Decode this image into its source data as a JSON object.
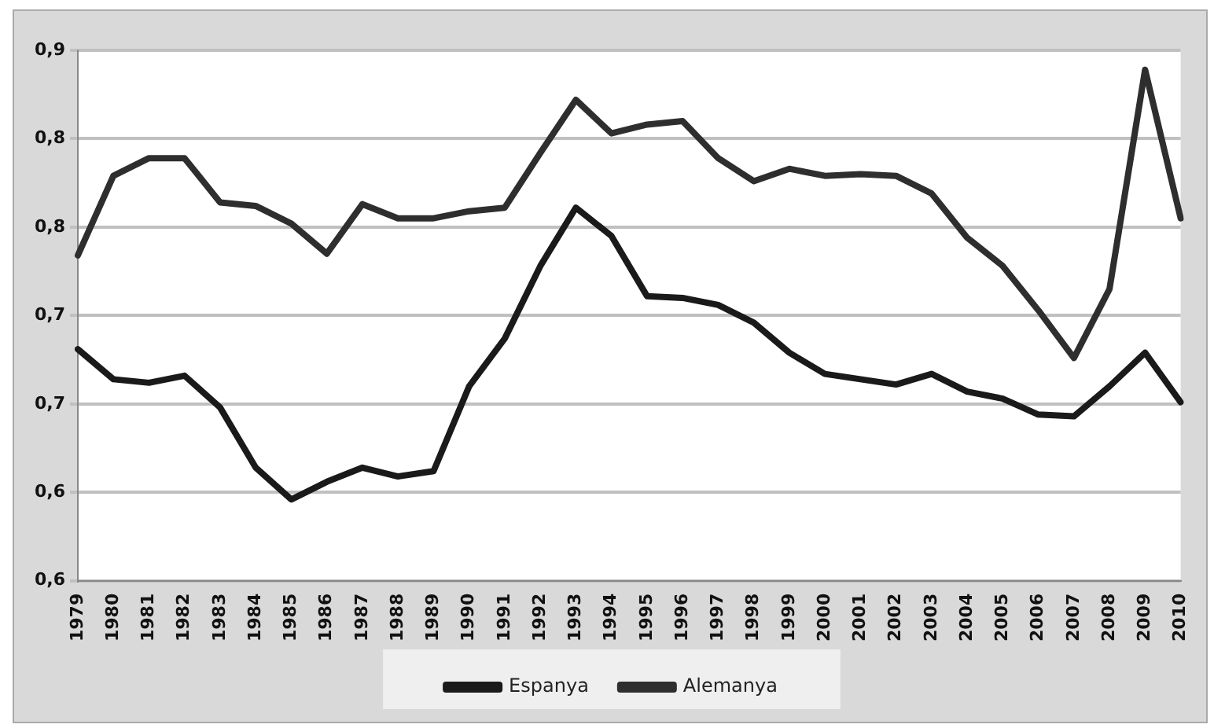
{
  "chart_data": {
    "type": "line",
    "categories": [
      "1979",
      "1980",
      "1981",
      "1982",
      "1983",
      "1984",
      "1985",
      "1986",
      "1987",
      "1988",
      "1989",
      "1990",
      "1991",
      "1992",
      "1993",
      "1994",
      "1995",
      "1996",
      "1997",
      "1998",
      "1999",
      "2000",
      "2001",
      "2002",
      "2003",
      "2004",
      "2005",
      "2006",
      "2007",
      "2008",
      "2009",
      "2010"
    ],
    "series": [
      {
        "name": "Espanya",
        "color": "#1a1a1a",
        "values": [
          0.681,
          0.664,
          0.662,
          0.666,
          0.648,
          0.614,
          0.596,
          0.606,
          0.614,
          0.609,
          0.612,
          0.66,
          0.687,
          0.728,
          0.761,
          0.745,
          0.711,
          0.71,
          0.706,
          0.696,
          0.679,
          0.667,
          0.664,
          0.661,
          0.667,
          0.657,
          0.653,
          0.644,
          0.643,
          0.66,
          0.679,
          0.651
        ]
      },
      {
        "name": "Alemanya",
        "color": "#2e2e2e",
        "values": [
          0.734,
          0.779,
          0.789,
          0.789,
          0.764,
          0.762,
          0.752,
          0.735,
          0.763,
          0.755,
          0.755,
          0.759,
          0.761,
          0.792,
          0.822,
          0.803,
          0.808,
          0.81,
          0.789,
          0.776,
          0.783,
          0.779,
          0.78,
          0.779,
          0.769,
          0.744,
          0.728,
          0.703,
          0.676,
          0.715,
          0.839,
          0.755
        ]
      }
    ],
    "ylim": [
      0.55,
      0.85
    ],
    "yticks": [
      {
        "value": 0.55,
        "label": "0,6"
      },
      {
        "value": 0.6,
        "label": "0,6"
      },
      {
        "value": 0.65,
        "label": "0,7"
      },
      {
        "value": 0.7,
        "label": "0,7"
      },
      {
        "value": 0.75,
        "label": "0,8"
      },
      {
        "value": 0.8,
        "label": "0,8"
      },
      {
        "value": 0.85,
        "label": "0,9"
      }
    ],
    "grid": "y",
    "legend": "bottom",
    "marker": "none",
    "line_style": "solid"
  }
}
